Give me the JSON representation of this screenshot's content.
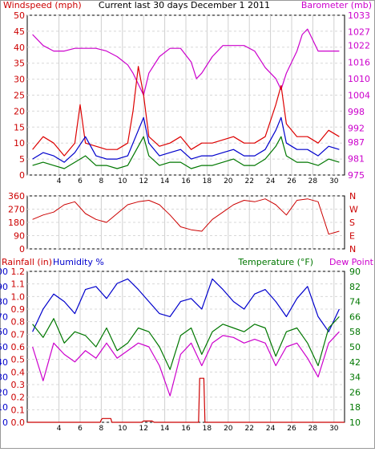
{
  "title": "Current last 30 days December 1 2011",
  "panels": {
    "wind": {
      "left_label": "Windspeed (mph)",
      "right_label": "Barometer (mb)"
    },
    "direction": {
      "compass": [
        "N",
        "W",
        "S",
        "E",
        "N"
      ]
    },
    "env": {
      "rainfall_label": "Rainfall (in)",
      "humidity_label": "Humidity %",
      "temperature_label": "Temperature (°F)",
      "dewpoint_label": "Dew Point"
    }
  },
  "colors": {
    "wind": "#dd0000",
    "gust_blue": "#0000cc",
    "gust_green": "#007700",
    "barometer": "#cc00cc",
    "direction": "#cc0000",
    "humidity": "#0000cc",
    "temperature": "#007700",
    "dewpoint": "#cc00cc",
    "rain": "#cc0000"
  },
  "chart_data": [
    {
      "type": "line",
      "x_ticks": [
        4,
        6,
        8,
        10,
        12,
        14,
        16,
        18,
        20,
        22,
        24,
        26,
        28,
        30
      ],
      "left_axis": {
        "label": "Windspeed (mph)",
        "ticks": [
          0,
          5,
          10,
          15,
          20,
          25,
          30,
          35,
          40,
          45,
          50
        ],
        "ylim": [
          0,
          50
        ]
      },
      "right_axis": {
        "label": "Barometer (mb)",
        "ticks": [
          975,
          981,
          987,
          992,
          998,
          1004,
          1010,
          1016,
          1022,
          1027,
          1033
        ],
        "ylim": [
          975,
          1033
        ]
      },
      "series": [
        {
          "axis": "right",
          "x": [
            1.5,
            2.5,
            3.5,
            4.5,
            5.5,
            6.5,
            7.5,
            8.5,
            9.5,
            10.5,
            11.0,
            11.5,
            12.0,
            12.5,
            13.5,
            14.5,
            15.5,
            16.5,
            17.0,
            17.5,
            18.5,
            19.5,
            20.5,
            21.5,
            22.5,
            23.5,
            24.5,
            25.0,
            25.5,
            26.5,
            27.0,
            27.5,
            28.0,
            28.5,
            29.5,
            30.5
          ],
          "values": [
            1026,
            1022,
            1020,
            1020,
            1021,
            1021,
            1021,
            1020,
            1018,
            1015,
            1012,
            1008,
            1004,
            1012,
            1018,
            1021,
            1021,
            1016,
            1010,
            1012,
            1018,
            1022,
            1022,
            1022,
            1020,
            1014,
            1010,
            1006,
            1012,
            1020,
            1026,
            1028,
            1024,
            1020,
            1020,
            1020
          ]
        },
        {
          "axis": "left",
          "x": [
            1.5,
            2.5,
            3.5,
            4.5,
            5.5,
            6.0,
            6.5,
            7.5,
            8.5,
            9.5,
            10.5,
            11.0,
            11.5,
            12.0,
            12.5,
            13.5,
            14.5,
            15.5,
            16.5,
            17.5,
            18.5,
            19.5,
            20.5,
            21.5,
            22.5,
            23.5,
            24.5,
            25.0,
            25.5,
            26.5,
            27.5,
            28.5,
            29.5,
            30.5
          ],
          "values": [
            8,
            12,
            10,
            6,
            10,
            22,
            10,
            9,
            8,
            8,
            10,
            20,
            34,
            25,
            12,
            9,
            10,
            12,
            8,
            10,
            10,
            11,
            12,
            10,
            10,
            12,
            22,
            28,
            16,
            12,
            12,
            10,
            14,
            12
          ]
        },
        {
          "axis": "left",
          "x": [
            1.5,
            2.5,
            3.5,
            4.5,
            5.5,
            6.5,
            7.5,
            8.5,
            9.5,
            10.5,
            11.5,
            12.0,
            12.5,
            13.5,
            14.5,
            15.5,
            16.5,
            17.5,
            18.5,
            19.5,
            20.5,
            21.5,
            22.5,
            23.5,
            24.5,
            25.0,
            25.5,
            26.5,
            27.5,
            28.5,
            29.5,
            30.5
          ],
          "values": [
            5,
            7,
            6,
            4,
            7,
            12,
            6,
            5,
            5,
            6,
            14,
            18,
            10,
            6,
            7,
            8,
            5,
            6,
            6,
            7,
            8,
            6,
            6,
            8,
            14,
            18,
            10,
            8,
            8,
            6,
            9,
            8
          ]
        },
        {
          "axis": "left",
          "x": [
            1.5,
            2.5,
            3.5,
            4.5,
            5.5,
            6.5,
            7.5,
            8.5,
            9.5,
            10.5,
            11.5,
            12.0,
            12.5,
            13.5,
            14.5,
            15.5,
            16.5,
            17.5,
            18.5,
            19.5,
            20.5,
            21.5,
            22.5,
            23.5,
            24.5,
            25.0,
            25.5,
            26.5,
            27.5,
            28.5,
            29.5,
            30.5
          ],
          "values": [
            3,
            4,
            3,
            2,
            4,
            6,
            3,
            3,
            2,
            3,
            9,
            12,
            6,
            3,
            4,
            4,
            2,
            3,
            3,
            4,
            5,
            3,
            3,
            5,
            9,
            12,
            6,
            4,
            4,
            3,
            5,
            4
          ]
        }
      ]
    },
    {
      "type": "line",
      "x_ticks": [
        4,
        6,
        8,
        10,
        12,
        14,
        16,
        18,
        20,
        22,
        24,
        26,
        28,
        30
      ],
      "left_axis": {
        "ticks": [
          0,
          90,
          180,
          270,
          360
        ],
        "ylim": [
          0,
          360
        ]
      },
      "right_axis": {
        "ticks": [
          "N",
          "W",
          "S",
          "E",
          "N"
        ]
      },
      "series": [
        {
          "x": [
            1.5,
            2.5,
            3.5,
            4.5,
            5.5,
            6.5,
            7.5,
            8.5,
            9.5,
            10.5,
            11.5,
            12.5,
            13.5,
            14.5,
            15.5,
            16.5,
            17.5,
            18.5,
            19.5,
            20.5,
            21.5,
            22.5,
            23.5,
            24.5,
            25.5,
            26.5,
            27.5,
            28.5,
            29.5,
            30.5
          ],
          "values": [
            200,
            230,
            250,
            300,
            320,
            240,
            200,
            180,
            240,
            300,
            320,
            330,
            300,
            230,
            150,
            130,
            120,
            200,
            250,
            300,
            330,
            320,
            340,
            300,
            230,
            330,
            340,
            320,
            100,
            120
          ]
        }
      ]
    },
    {
      "type": "line",
      "x_ticks": [
        4,
        6,
        8,
        10,
        12,
        14,
        16,
        18,
        20,
        22,
        24,
        26,
        28,
        30
      ],
      "left_axis": {
        "label": "Rainfall (in)",
        "ticks": [
          0.0,
          0.1,
          0.2,
          0.3,
          0.4,
          0.5,
          0.6,
          0.7,
          0.8,
          0.9,
          1.0,
          1.1,
          1.2
        ],
        "ylim": [
          0,
          1.2
        ]
      },
      "humidity_axis": {
        "label": "Humidity %",
        "ticks": [
          0,
          10,
          20,
          30,
          40,
          50,
          60,
          70,
          80,
          90,
          100
        ],
        "ylim": [
          0,
          100
        ]
      },
      "right_axis": {
        "label": "Temperature (°F)",
        "ticks": [
          10,
          18,
          26,
          34,
          42,
          50,
          58,
          66,
          74,
          82,
          90
        ],
        "ylim": [
          10,
          90
        ]
      },
      "series": [
        {
          "axis": "humidity",
          "x": [
            1.5,
            2.5,
            3.5,
            4.5,
            5.5,
            6.5,
            7.5,
            8.5,
            9.5,
            10.5,
            11.5,
            12.5,
            13.5,
            14.5,
            15.5,
            16.5,
            17.5,
            18.5,
            19.5,
            20.5,
            21.5,
            22.5,
            23.5,
            24.5,
            25.5,
            26.5,
            27.5,
            28.5,
            29.5,
            30.5
          ],
          "values": [
            60,
            75,
            85,
            80,
            72,
            88,
            90,
            82,
            92,
            95,
            88,
            80,
            72,
            70,
            80,
            82,
            75,
            95,
            88,
            80,
            75,
            85,
            88,
            80,
            70,
            82,
            90,
            70,
            60,
            75
          ]
        },
        {
          "axis": "right",
          "x": [
            1.5,
            2.5,
            3.5,
            4.5,
            5.5,
            6.5,
            7.5,
            8.5,
            9.5,
            10.5,
            11.5,
            12.5,
            13.5,
            14.5,
            15.5,
            16.5,
            17.5,
            18.5,
            19.5,
            20.5,
            21.5,
            22.5,
            23.5,
            24.5,
            25.5,
            26.5,
            27.5,
            28.5,
            29.5,
            30.5
          ],
          "values": [
            62,
            55,
            65,
            52,
            58,
            56,
            50,
            60,
            48,
            52,
            60,
            58,
            50,
            38,
            56,
            60,
            46,
            58,
            62,
            60,
            58,
            62,
            60,
            45,
            58,
            60,
            52,
            40,
            60,
            66
          ]
        },
        {
          "axis": "right",
          "x": [
            1.5,
            2.5,
            3.5,
            4.5,
            5.5,
            6.5,
            7.5,
            8.5,
            9.5,
            10.5,
            11.5,
            12.5,
            13.5,
            14.5,
            15.5,
            16.5,
            17.5,
            18.5,
            19.5,
            20.5,
            21.5,
            22.5,
            23.5,
            24.5,
            25.5,
            26.5,
            27.5,
            28.5,
            29.5,
            30.5
          ],
          "values": [
            50,
            32,
            52,
            46,
            42,
            48,
            44,
            52,
            44,
            48,
            52,
            50,
            40,
            24,
            46,
            52,
            40,
            52,
            56,
            55,
            52,
            54,
            52,
            40,
            50,
            52,
            44,
            34,
            52,
            58
          ]
        },
        {
          "axis": "left",
          "x": [
            1.0,
            7.9,
            8.0,
            8.1,
            8.9,
            9.0,
            11.8,
            12.0,
            12.8,
            13.0,
            17.2,
            17.3,
            17.7,
            17.8,
            31.0
          ],
          "values": [
            0,
            0,
            0.02,
            0.03,
            0.03,
            0.0,
            0.0,
            0.01,
            0.01,
            0.0,
            0.0,
            0.35,
            0.35,
            0.0,
            0.0
          ]
        }
      ]
    }
  ]
}
